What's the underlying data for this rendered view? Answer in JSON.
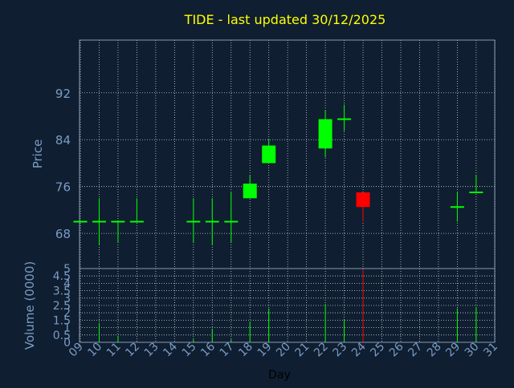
{
  "colors": {
    "background": "#0f1e30",
    "title": "#ffff00",
    "axis_text": "#7a9cc6",
    "frame": "#8a9bb0",
    "grid": "#c8d0da",
    "up": "#00ff00",
    "down": "#ff0000"
  },
  "chart_data": {
    "type": "candlestick",
    "title": "TIDE - last updated 30/12/2025",
    "xlabel": "Day",
    "price_panel": {
      "ylabel": "Price",
      "ylim": [
        62,
        101
      ],
      "yticks": [
        68,
        76,
        84,
        92
      ],
      "grid": true
    },
    "volume_panel": {
      "ylabel": "Volume (0000)",
      "ylim": [
        0,
        5
      ],
      "yticks": [
        0,
        0.5,
        1,
        1.5,
        2,
        2.5,
        3,
        3.5,
        4,
        4.5,
        5
      ],
      "ytick_labels": [
        "0",
        "0.5",
        "1",
        "1.5",
        "2",
        "2.5",
        "3",
        "3.5",
        "4",
        "4.5",
        "5"
      ],
      "grid": true
    },
    "days": [
      "09",
      "10",
      "11",
      "12",
      "13",
      "14",
      "15",
      "16",
      "17",
      "18",
      "19",
      "20",
      "21",
      "22",
      "23",
      "24",
      "25",
      "26",
      "27",
      "28",
      "29",
      "30",
      "31"
    ],
    "candles": [
      {
        "day": "09",
        "open": 70,
        "high": 70,
        "low": 70,
        "close": 70,
        "volume": 0
      },
      {
        "day": "10",
        "open": 70,
        "high": 74,
        "low": 66,
        "close": 70,
        "volume": 1.3
      },
      {
        "day": "11",
        "open": 70,
        "high": 70,
        "low": 66.5,
        "close": 70,
        "volume": 0.4
      },
      {
        "day": "12",
        "open": 70,
        "high": 74,
        "low": 70,
        "close": 70,
        "volume": 0
      },
      {
        "day": "15",
        "open": 70,
        "high": 74,
        "low": 66.5,
        "close": 70,
        "volume": 0.2
      },
      {
        "day": "16",
        "open": 70,
        "high": 74,
        "low": 66,
        "close": 70,
        "volume": 0.9
      },
      {
        "day": "17",
        "open": 70,
        "high": 75,
        "low": 66.5,
        "close": 70,
        "volume": 0.2
      },
      {
        "day": "18",
        "open": 74,
        "high": 78,
        "low": 74,
        "close": 76.5,
        "volume": 1.4
      },
      {
        "day": "19",
        "open": 80,
        "high": 84,
        "low": 80,
        "close": 83,
        "volume": 2.3
      },
      {
        "day": "22",
        "open": 82.5,
        "high": 89,
        "low": 81,
        "close": 87.5,
        "volume": 2.6
      },
      {
        "day": "23",
        "open": 87.5,
        "high": 90,
        "low": 85.5,
        "close": 87.5,
        "volume": 1.5
      },
      {
        "day": "24",
        "open": 75,
        "high": 75,
        "low": 70,
        "close": 72.5,
        "volume": 4.9
      },
      {
        "day": "29",
        "open": 72.5,
        "high": 75,
        "low": 70,
        "close": 72.5,
        "volume": 2.3
      },
      {
        "day": "30",
        "open": 75,
        "high": 78,
        "low": 75,
        "close": 75,
        "volume": 2.4
      }
    ]
  }
}
